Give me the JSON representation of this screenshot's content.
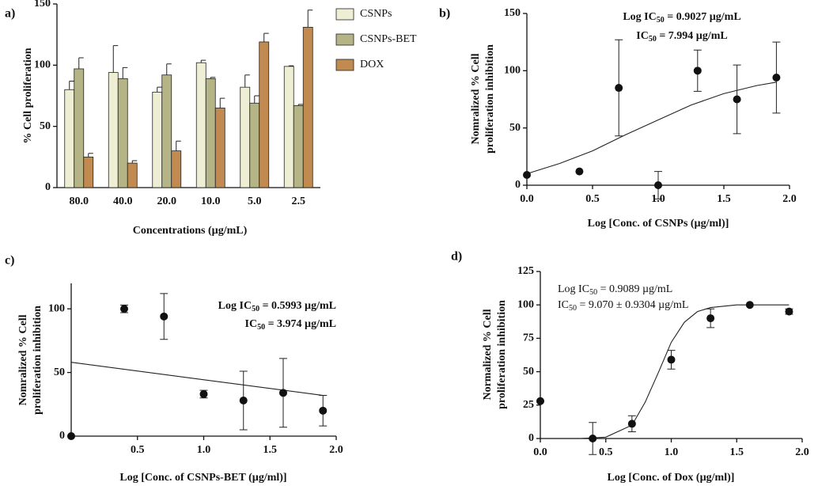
{
  "chart_data": [
    {
      "type": "bar",
      "label": "a)",
      "ylabel": "% Cell proliferation",
      "xlabel": "Concentrations (µg/mL)",
      "categories": [
        "80.0",
        "40.0",
        "20.0",
        "10.0",
        "5.0",
        "2.5"
      ],
      "ylim": [
        0,
        150
      ],
      "yticks": [
        0,
        50,
        100,
        150
      ],
      "series": [
        {
          "name": "CSNPs",
          "color": "#eeeed5",
          "values": [
            80,
            94,
            78,
            102,
            82,
            99
          ],
          "errors": [
            7,
            22,
            4,
            2,
            10,
            0.5
          ]
        },
        {
          "name": "CSNPs-BET",
          "color": "#b4b487",
          "values": [
            97,
            89,
            92,
            89,
            69,
            67
          ],
          "errors": [
            9,
            9,
            9,
            1,
            6,
            1
          ]
        },
        {
          "name": "DOX",
          "color": "#c08a50",
          "values": [
            25,
            20,
            30,
            65,
            119,
            131
          ],
          "errors": [
            3,
            2,
            8,
            8,
            7,
            14
          ]
        }
      ]
    },
    {
      "type": "scatter",
      "label": "b)",
      "ylabel": [
        "Nomralized % Cell",
        "proliferation inhibition"
      ],
      "xlabel": "Log [Conc. of CSNPs (µg/ml)]",
      "annotations": [
        [
          "Log IC",
          "50",
          " = 0.9027 µg/mL"
        ],
        [
          "IC",
          "50",
          " = 7.994 µg/mL"
        ]
      ],
      "xlim": [
        0,
        2
      ],
      "xticks": [
        {
          "value": 0,
          "label": "0.0"
        },
        {
          "value": 0.5,
          "label": "0.5"
        },
        {
          "value": 1,
          "label": "1.0"
        },
        {
          "value": 1.5,
          "label": "1.5"
        },
        {
          "value": 2,
          "label": "2.0"
        }
      ],
      "ylim": [
        0,
        150
      ],
      "yticks": [
        0,
        50,
        100,
        150
      ],
      "x": [
        0,
        0.4,
        0.7,
        1.0,
        1.3,
        1.6,
        1.9
      ],
      "values": [
        9,
        12,
        85,
        0,
        100,
        75,
        94
      ],
      "errors": [
        null,
        null,
        42,
        12,
        18,
        30,
        31
      ],
      "fit_x": [
        0,
        0.25,
        0.5,
        0.75,
        1.0,
        1.25,
        1.5,
        1.75,
        1.9
      ],
      "fit_y": [
        10,
        19,
        30,
        44,
        57,
        70,
        80,
        87,
        90
      ]
    },
    {
      "type": "scatter",
      "label": "c)",
      "ylabel": [
        "Nomralized % Cell",
        "proliferation inhibition"
      ],
      "xlabel": "Log [Conc. of CSNPs-BET (µg/ml)]",
      "annotations": [
        [
          "Log IC",
          "50",
          " = 0.5993 µg/mL"
        ],
        [
          "IC",
          "50",
          " = 3.974 µg/mL"
        ]
      ],
      "xlim": [
        0,
        2
      ],
      "xticks": [
        {
          "value": 0.5,
          "label": "0.5"
        },
        {
          "value": 1,
          "label": "1.0"
        },
        {
          "value": 1.5,
          "label": "1.5"
        },
        {
          "value": 2,
          "label": "2.0"
        }
      ],
      "ylim": [
        0,
        120
      ],
      "yticks": [
        0,
        50,
        100
      ],
      "x": [
        0,
        0.4,
        0.7,
        1.0,
        1.3,
        1.6,
        1.9
      ],
      "values": [
        0,
        100,
        94,
        33,
        28,
        34,
        20
      ],
      "errors": [
        null,
        3,
        18,
        3,
        23,
        27,
        12
      ],
      "fit_x": [
        0,
        1.9
      ],
      "fit_y": [
        58,
        32
      ]
    },
    {
      "type": "scatter",
      "label": "d)",
      "ylabel": [
        "Normalized % Cell",
        "proliferation inhibition"
      ],
      "xlabel": "Log [Conc. of Dox (µg/ml)]",
      "annotations": [
        [
          "Log IC",
          "50",
          " = 0.9089 µg/mL"
        ],
        [
          "IC",
          "50",
          " = 9.070 ± 0.9304 µg/mL"
        ]
      ],
      "xlim": [
        0,
        2
      ],
      "xticks": [
        {
          "value": 0,
          "label": "0.0"
        },
        {
          "value": 0.5,
          "label": "0.5"
        },
        {
          "value": 1,
          "label": "1.0"
        },
        {
          "value": 1.5,
          "label": "1.5"
        },
        {
          "value": 2,
          "label": "2.0"
        }
      ],
      "ylim": [
        0,
        125
      ],
      "yticks": [
        0,
        25,
        50,
        75,
        100,
        125
      ],
      "x": [
        0,
        0.4,
        0.7,
        1.0,
        1.3,
        1.6,
        1.9
      ],
      "values": [
        28,
        0,
        11,
        59,
        90,
        100,
        95
      ],
      "errors": [
        null,
        12,
        6,
        7,
        7,
        null,
        2
      ],
      "fit_x": [
        0.3,
        0.5,
        0.7,
        0.8,
        0.9,
        1.0,
        1.1,
        1.2,
        1.3,
        1.5,
        1.9
      ],
      "fit_y": [
        0,
        1,
        10,
        27,
        49,
        72,
        87,
        95,
        98,
        100,
        100
      ]
    }
  ]
}
